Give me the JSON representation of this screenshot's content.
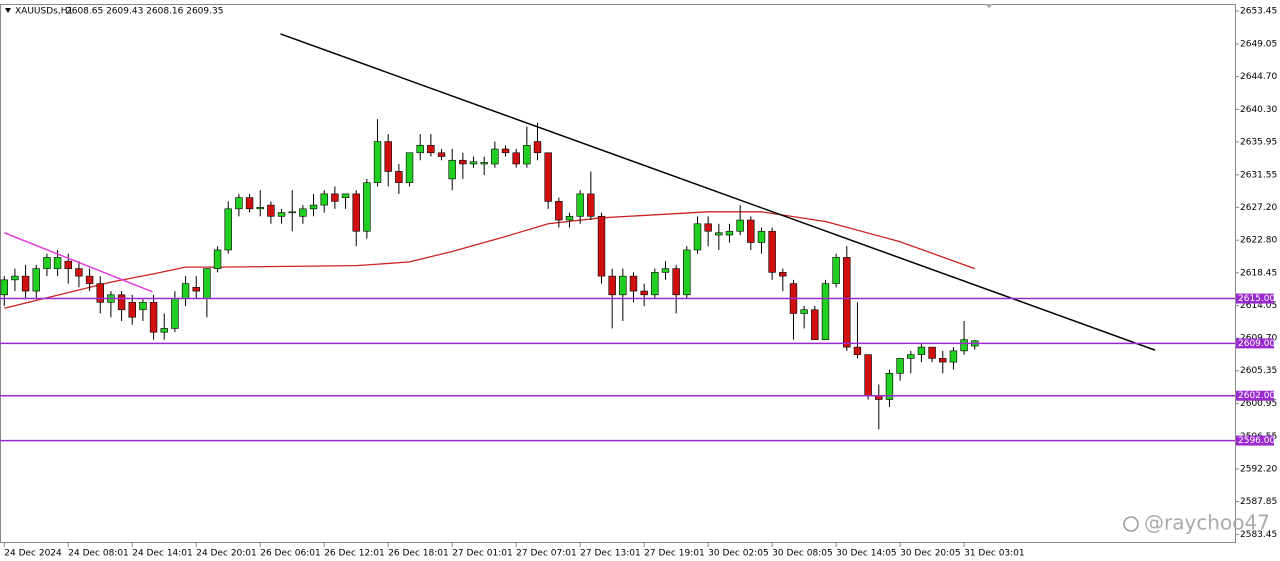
{
  "chart_data": {
    "type": "candlestick",
    "symbol": "XAUUSDs,H1",
    "quote": "2608.65 2609.43 2608.16 2609.35",
    "watermark": "@raychoo47",
    "up_color": "#20d020",
    "down_color": "#d01010",
    "xlim": [
      -0.4,
      115.4
    ],
    "ylim": [
      2582.3,
      2654.4
    ],
    "yticks": [
      2653.45,
      2649.05,
      {
        "value": 2644.7,
        "label": "2644.70"
      },
      {
        "value": 2640.3,
        "label": "2640.30"
      },
      2635.95,
      2631.55,
      {
        "value": 2627.2,
        "label": "2627.20"
      },
      {
        "value": 2622.8,
        "label": "2622.80"
      },
      2618.45,
      2614.05,
      {
        "value": 2609.7,
        "label": "2609.70"
      },
      2605.35,
      2600.95,
      2596.55,
      {
        "value": 2592.2,
        "label": "2592.20"
      },
      2587.85,
      2583.45
    ],
    "categories": [
      "24 Dec 2024",
      null,
      null,
      null,
      null,
      null,
      "24 Dec 08:01",
      null,
      null,
      null,
      null,
      null,
      "24 Dec 14:01",
      null,
      null,
      null,
      null,
      null,
      "24 Dec 20:01",
      null,
      null,
      null,
      null,
      null,
      "26 Dec 06:01",
      null,
      null,
      null,
      null,
      null,
      "26 Dec 12:01",
      null,
      null,
      null,
      null,
      null,
      "26 Dec 18:01",
      null,
      null,
      null,
      null,
      null,
      "27 Dec 01:01",
      null,
      null,
      null,
      null,
      null,
      "27 Dec 07:01",
      null,
      null,
      null,
      null,
      null,
      "27 Dec 13:01",
      null,
      null,
      null,
      null,
      null,
      "27 Dec 19:01",
      null,
      null,
      null,
      null,
      null,
      "30 Dec 02:05",
      null,
      null,
      null,
      null,
      null,
      "30 Dec 08:05",
      null,
      null,
      null,
      null,
      null,
      "30 Dec 14:05",
      null,
      null,
      null,
      null,
      null,
      "30 Dec 20:05",
      null,
      null,
      null,
      null,
      null,
      "31 Dec 03:01",
      null
    ],
    "ohlc": [
      [
        2615.5,
        2618,
        2614,
        2617.5
      ],
      [
        2617.5,
        2619,
        2616,
        2618
      ],
      [
        2618,
        2619.5,
        2615,
        2616
      ],
      [
        2616,
        2619.5,
        2615,
        2619
      ],
      [
        2619,
        2621,
        2618,
        2620.5
      ],
      [
        2619,
        2621.5,
        2618,
        2620.5
      ],
      [
        2620,
        2621,
        2617,
        2619
      ],
      [
        2619,
        2620,
        2616.5,
        2618
      ],
      [
        2618,
        2619,
        2616,
        2617
      ],
      [
        2617,
        2618,
        2613,
        2614.5
      ],
      [
        2614.5,
        2616,
        2612.5,
        2615.5
      ],
      [
        2615.5,
        2616,
        2612,
        2613.5
      ],
      [
        2614.5,
        2615.5,
        2611.5,
        2612.5
      ],
      [
        2613.5,
        2615,
        2612,
        2614.5
      ],
      [
        2614.5,
        2615.5,
        2609.5,
        2610.5
      ],
      [
        2610.5,
        2613,
        2609.5,
        2611
      ],
      [
        2611,
        2616,
        2610.5,
        2615
      ],
      [
        2615,
        2618,
        2614,
        2617
      ],
      [
        2616.5,
        2618,
        2615,
        2616
      ],
      [
        2615,
        2619,
        2612.5,
        2619
      ],
      [
        2619,
        2622,
        2618.5,
        2621.5
      ],
      [
        2621.5,
        2628,
        2621,
        2627
      ],
      [
        2627,
        2629,
        2626,
        2628.5
      ],
      [
        2628.5,
        2629,
        2626.5,
        2627
      ],
      [
        2627,
        2629.5,
        2626,
        2627.2
      ],
      [
        2627.5,
        2628,
        2625,
        2626
      ],
      [
        2626,
        2627,
        2625,
        2626.5
      ],
      [
        2626.5,
        2629.5,
        2624,
        2626.6
      ],
      [
        2626,
        2627.5,
        2625,
        2627
      ],
      [
        2627,
        2629,
        2626,
        2627.5
      ],
      [
        2627.5,
        2629.5,
        2626.5,
        2629
      ],
      [
        2629,
        2630,
        2627,
        2628
      ],
      [
        2628.5,
        2629,
        2627,
        2629
      ],
      [
        2629,
        2629.5,
        2622,
        2624
      ],
      [
        2624,
        2631,
        2623,
        2630.5
      ],
      [
        2630.5,
        2639,
        2630,
        2636
      ],
      [
        2636,
        2637,
        2630,
        2632
      ],
      [
        2632,
        2633,
        2629,
        2630.5
      ],
      [
        2630.5,
        2634.5,
        2630,
        2634.5
      ],
      [
        2634.5,
        2637,
        2633.5,
        2635.5
      ],
      [
        2635.5,
        2637,
        2634,
        2634.5
      ],
      [
        2634.5,
        2635,
        2633.5,
        2634
      ],
      [
        2631,
        2635,
        2629.5,
        2633.5
      ],
      [
        2633.5,
        2634.5,
        2631,
        2633
      ],
      [
        2633,
        2634,
        2632.5,
        2633.3
      ],
      [
        2633,
        2634,
        2631.5,
        2633.2
      ],
      [
        2633,
        2636,
        2632.5,
        2635
      ],
      [
        2635,
        2635.5,
        2634,
        2634.5
      ],
      [
        2634.5,
        2635,
        2632.5,
        2633
      ],
      [
        2633,
        2638,
        2632.5,
        2635.5
      ],
      [
        2636,
        2638.5,
        2633.5,
        2634.5
      ],
      [
        2634.5,
        2634.5,
        2627,
        2628
      ],
      [
        2628,
        2628.5,
        2624.5,
        2625.5
      ],
      [
        2625.5,
        2626.5,
        2624.5,
        2626
      ],
      [
        2626,
        2629.5,
        2625,
        2629
      ],
      [
        2629,
        2632,
        2625.5,
        2626
      ],
      [
        2626,
        2626.5,
        2617,
        2618
      ],
      [
        2618,
        2619,
        2611,
        2615.5
      ],
      [
        2615.5,
        2619,
        2612,
        2618
      ],
      [
        2618,
        2618.5,
        2614.5,
        2616
      ],
      [
        2616,
        2617,
        2614,
        2615.5
      ],
      [
        2615.5,
        2619,
        2615,
        2618.5
      ],
      [
        2618.5,
        2620,
        2617.5,
        2619
      ],
      [
        2619,
        2619.5,
        2613,
        2615.5
      ],
      [
        2615.5,
        2622,
        2615,
        2621.5
      ],
      [
        2621.5,
        2626,
        2621,
        2625
      ],
      [
        2625,
        2626,
        2622,
        2624
      ],
      [
        2623.5,
        2625,
        2621.5,
        2623.8
      ],
      [
        2623.5,
        2625,
        2622.5,
        2624
      ],
      [
        2624,
        2627.5,
        2623.5,
        2625.5
      ],
      [
        2625.5,
        2626,
        2621.5,
        2622.5
      ],
      [
        2622.5,
        2624.5,
        2621,
        2624
      ],
      [
        2624,
        2624.5,
        2617.5,
        2618.5
      ],
      [
        2618.5,
        2619,
        2616,
        2618
      ],
      [
        2617,
        2617.5,
        2609.5,
        2613
      ],
      [
        2613,
        2614,
        2611,
        2613.5
      ],
      [
        2613.5,
        2614,
        2609.5,
        2609.5
      ],
      [
        2609.5,
        2617.5,
        2609.5,
        2617
      ],
      [
        2617,
        2621,
        2616.5,
        2620.5
      ],
      [
        2620.5,
        2622,
        2608,
        2608.5
      ],
      [
        2608.5,
        2614.5,
        2607,
        2607.5
      ],
      [
        2607.5,
        2607.5,
        2601.5,
        2602
      ],
      [
        2602,
        2603.5,
        2597.5,
        2601.5
      ],
      [
        2601.5,
        2605.5,
        2600.5,
        2605
      ],
      [
        2605,
        2607,
        2604,
        2607
      ],
      [
        2607,
        2608,
        2605,
        2607.5
      ],
      [
        2607.5,
        2609,
        2606.5,
        2608.5
      ],
      [
        2608.5,
        2608.5,
        2606.5,
        2607
      ],
      [
        2607,
        2608,
        2605,
        2606.5
      ],
      [
        2606.5,
        2608.5,
        2605.5,
        2608
      ],
      [
        2608,
        2612,
        2607.5,
        2609.5
      ],
      [
        2608.65,
        2609.43,
        2608.16,
        2609.35
      ]
    ],
    "moving_average": {
      "color": "#cc2222",
      "x": [
        0,
        10,
        14,
        17,
        20,
        33,
        38,
        42,
        47,
        51,
        56,
        66,
        71,
        77,
        84,
        91
      ],
      "values": [
        2613.7,
        2617.2,
        2618.3,
        2619.2,
        2619.2,
        2619.4,
        2619.9,
        2621.3,
        2623.3,
        2625.0,
        2625.8,
        2626.6,
        2626.6,
        2625.3,
        2622.6,
        2619.0
      ]
    },
    "trendlines": [
      {
        "color": "#000000",
        "x": [
          25.9,
          107.9
        ],
        "values": [
          2650.4,
          2608.1
        ]
      },
      {
        "color": "#e040e0",
        "x": [
          0,
          13.9
        ],
        "values": [
          2623.8,
          2615.9
        ]
      }
    ],
    "levels_color": "#9a2ad0",
    "levels": [
      {
        "value": 2615,
        "label": "2615.00"
      },
      {
        "value": 2609,
        "label": "2609.00"
      },
      {
        "value": 2602,
        "label": "2602.00"
      },
      {
        "value": 2596,
        "label": "2596.00"
      }
    ]
  }
}
